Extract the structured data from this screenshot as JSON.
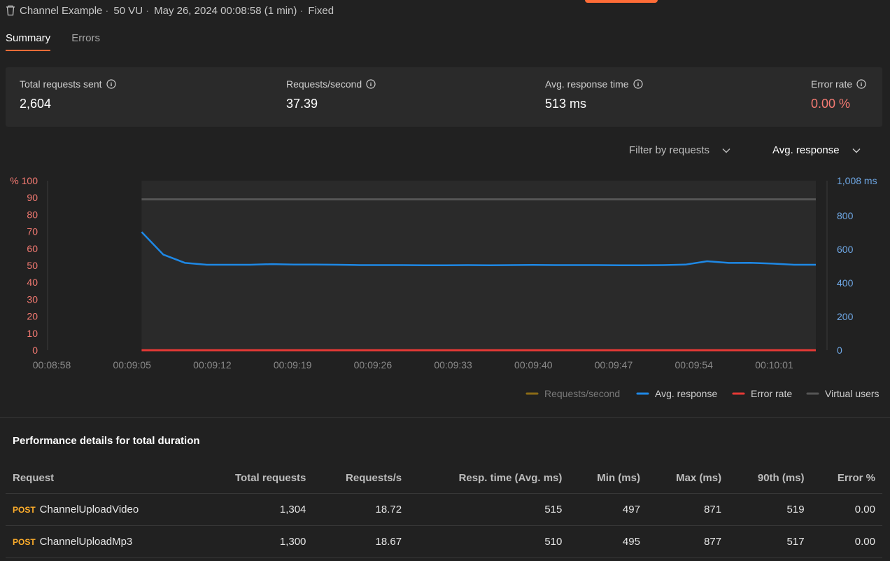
{
  "header": {
    "collection": "Channel Example",
    "vus": "50 VU",
    "run_time": "May 26, 2024 00:08:58 (1 min)",
    "profile": "Fixed",
    "separator": "·"
  },
  "tabs": [
    {
      "label": "Summary",
      "active": true
    },
    {
      "label": "Errors",
      "active": false
    }
  ],
  "summary": {
    "total_requests": {
      "label": "Total requests sent",
      "value": "2,604"
    },
    "requests_per_second": {
      "label": "Requests/second",
      "value": "37.39"
    },
    "avg_response": {
      "label": "Avg. response time",
      "value": "513 ms"
    },
    "error_rate": {
      "label": "Error rate",
      "value": "0.00 %"
    }
  },
  "filters": {
    "requests_filter": "Filter by requests",
    "metric_select": "Avg. response"
  },
  "colors": {
    "accent": "#ff6c37",
    "avg_response": "#1e88e5",
    "error_rate": "#e53935",
    "requests_second": "#8a6a16",
    "virtual_users": "#555555",
    "left_axis": "#f47a72",
    "right_axis": "#6fa8e6",
    "method": "#ffae2b"
  },
  "chart_data": {
    "type": "line",
    "x_ticks": [
      "00:08:58",
      "00:09:05",
      "00:09:12",
      "00:09:19",
      "00:09:26",
      "00:09:33",
      "00:09:40",
      "00:09:47",
      "00:09:54",
      "00:10:01"
    ],
    "x_start_s": 0,
    "x_end_s": 67,
    "data_start_s": 8.2,
    "left_axis": {
      "unit": "%",
      "ticks": [
        0,
        10,
        20,
        30,
        40,
        50,
        60,
        70,
        80,
        90,
        100
      ],
      "range": [
        0,
        100
      ]
    },
    "right_axis": {
      "unit": "ms",
      "top_label": "1,008 ms",
      "ticks": [
        0,
        200,
        400,
        600,
        800
      ],
      "range": [
        0,
        1008
      ]
    },
    "series": [
      {
        "name": "Avg. response",
        "axis": "right",
        "color": "#1e88e5",
        "values": [
          703,
          568,
          519,
          508,
          508,
          508,
          512,
          509,
          509,
          508,
          506,
          506,
          506,
          505,
          505,
          506,
          505,
          506,
          507,
          506,
          506,
          506,
          505,
          505,
          506,
          509,
          529,
          519,
          520,
          515,
          508,
          508
        ]
      },
      {
        "name": "Error rate",
        "axis": "left",
        "color": "#e53935",
        "values": [
          0,
          0,
          0,
          0,
          0,
          0,
          0,
          0,
          0,
          0,
          0,
          0,
          0,
          0,
          0,
          0,
          0,
          0,
          0,
          0,
          0,
          0,
          0,
          0,
          0,
          0,
          0,
          0,
          0,
          0,
          0,
          0
        ]
      },
      {
        "name": "Virtual users",
        "axis": "left",
        "color": "#555555",
        "values": [
          89,
          89,
          89,
          89,
          89,
          89,
          89,
          89,
          89,
          89,
          89,
          89,
          89,
          89,
          89,
          89,
          89,
          89,
          89,
          89,
          89,
          89,
          89,
          89,
          89,
          89,
          89,
          89,
          89,
          89,
          89,
          89
        ]
      }
    ],
    "legend": [
      "Requests/second",
      "Avg. response",
      "Error rate",
      "Virtual users"
    ]
  },
  "performance": {
    "title": "Performance details for total duration",
    "columns": [
      "Request",
      "Total requests",
      "Requests/s",
      "Resp. time (Avg. ms)",
      "Min (ms)",
      "Max (ms)",
      "90th (ms)",
      "Error %"
    ],
    "rows": [
      {
        "method": "POST",
        "name": "ChannelUploadVideo",
        "total": "1,304",
        "rps": "18.72",
        "avg": "515",
        "min": "497",
        "max": "871",
        "p90": "519",
        "err": "0.00"
      },
      {
        "method": "POST",
        "name": "ChannelUploadMp3",
        "total": "1,300",
        "rps": "18.67",
        "avg": "510",
        "min": "495",
        "max": "877",
        "p90": "517",
        "err": "0.00"
      }
    ]
  }
}
